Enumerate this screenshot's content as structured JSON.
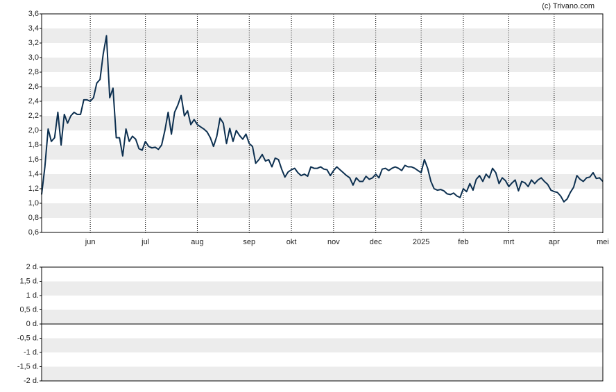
{
  "credit": "(c) Trivano.com",
  "chart_data": [
    {
      "type": "line",
      "color": "#0d3050",
      "values": [
        1.12,
        1.5,
        2.02,
        1.85,
        1.9,
        2.25,
        1.8,
        2.22,
        2.1,
        2.2,
        2.25,
        2.22,
        2.22,
        2.42,
        2.42,
        2.4,
        2.45,
        2.65,
        2.7,
        3.05,
        3.3,
        2.45,
        2.58,
        1.9,
        1.9,
        1.65,
        2.02,
        1.85,
        1.92,
        1.88,
        1.75,
        1.73,
        1.85,
        1.78,
        1.76,
        1.77,
        1.74,
        1.8,
        2.0,
        2.25,
        1.95,
        2.25,
        2.35,
        2.48,
        2.2,
        2.27,
        2.08,
        2.15,
        2.08,
        2.05,
        2.02,
        1.98,
        1.9,
        1.78,
        1.92,
        2.17,
        2.1,
        1.82,
        2.03,
        1.85,
        2.0,
        1.93,
        1.88,
        1.95,
        1.82,
        1.78,
        1.55,
        1.6,
        1.67,
        1.58,
        1.6,
        1.5,
        1.62,
        1.6,
        1.47,
        1.36,
        1.43,
        1.46,
        1.48,
        1.42,
        1.38,
        1.4,
        1.37,
        1.5,
        1.48,
        1.48,
        1.5,
        1.47,
        1.46,
        1.38,
        1.45,
        1.5,
        1.46,
        1.42,
        1.38,
        1.35,
        1.25,
        1.35,
        1.3,
        1.3,
        1.37,
        1.33,
        1.35,
        1.4,
        1.35,
        1.47,
        1.48,
        1.45,
        1.48,
        1.5,
        1.48,
        1.45,
        1.52,
        1.5,
        1.5,
        1.48,
        1.45,
        1.42,
        1.6,
        1.48,
        1.3,
        1.2,
        1.18,
        1.19,
        1.17,
        1.13,
        1.12,
        1.14,
        1.1,
        1.08,
        1.2,
        1.16,
        1.27,
        1.18,
        1.33,
        1.38,
        1.3,
        1.4,
        1.35,
        1.48,
        1.42,
        1.27,
        1.35,
        1.31,
        1.23,
        1.28,
        1.32,
        1.17,
        1.3,
        1.28,
        1.23,
        1.32,
        1.27,
        1.32,
        1.35,
        1.3,
        1.26,
        1.18,
        1.16,
        1.15,
        1.1,
        1.02,
        1.06,
        1.15,
        1.22,
        1.38,
        1.33,
        1.3,
        1.35,
        1.36,
        1.42,
        1.34,
        1.35,
        1.3
      ],
      "xlim": [
        0,
        173
      ],
      "xticks": [
        {
          "value": 15,
          "label": "jun"
        },
        {
          "value": 32,
          "label": "jul"
        },
        {
          "value": 48,
          "label": "aug"
        },
        {
          "value": 64,
          "label": "sep"
        },
        {
          "value": 77,
          "label": "okt"
        },
        {
          "value": 90,
          "label": "nov"
        },
        {
          "value": 103,
          "label": "dec"
        },
        {
          "value": 117,
          "label": "2025"
        },
        {
          "value": 130,
          "label": "feb"
        },
        {
          "value": 144,
          "label": "mrt"
        },
        {
          "value": 158,
          "label": "apr"
        },
        {
          "value": 173,
          "label": "mei"
        }
      ],
      "ylim": [
        0.6,
        3.6
      ],
      "yticks": [
        {
          "value": 0.6,
          "label": "0,6"
        },
        {
          "value": 0.8,
          "label": "0,8"
        },
        {
          "value": 1.0,
          "label": "1,0"
        },
        {
          "value": 1.2,
          "label": "1,2"
        },
        {
          "value": 1.4,
          "label": "1,4"
        },
        {
          "value": 1.6,
          "label": "1,6"
        },
        {
          "value": 1.8,
          "label": "1,8"
        },
        {
          "value": 2.0,
          "label": "2,0"
        },
        {
          "value": 2.2,
          "label": "2,2"
        },
        {
          "value": 2.4,
          "label": "2,4"
        },
        {
          "value": 2.6,
          "label": "2,6"
        },
        {
          "value": 2.8,
          "label": "2,8"
        },
        {
          "value": 3.0,
          "label": "3,0"
        },
        {
          "value": 3.2,
          "label": "3,2"
        },
        {
          "value": 3.4,
          "label": "3,4"
        },
        {
          "value": 3.6,
          "label": "3,6"
        }
      ],
      "grid": true
    },
    {
      "type": "bar",
      "ylim": [
        -2,
        2
      ],
      "yticks": [
        {
          "value": -2,
          "label": "-2 d."
        },
        {
          "value": -1.5,
          "label": "-1,5 d."
        },
        {
          "value": -1,
          "label": "-1 d."
        },
        {
          "value": -0.5,
          "label": "-0,5 d."
        },
        {
          "value": 0,
          "label": "0 d."
        },
        {
          "value": 0.5,
          "label": "0,5 d."
        },
        {
          "value": 1,
          "label": "1 d."
        },
        {
          "value": 1.5,
          "label": "1,5 d."
        },
        {
          "value": 2,
          "label": "2 d."
        }
      ],
      "grid": true
    }
  ]
}
